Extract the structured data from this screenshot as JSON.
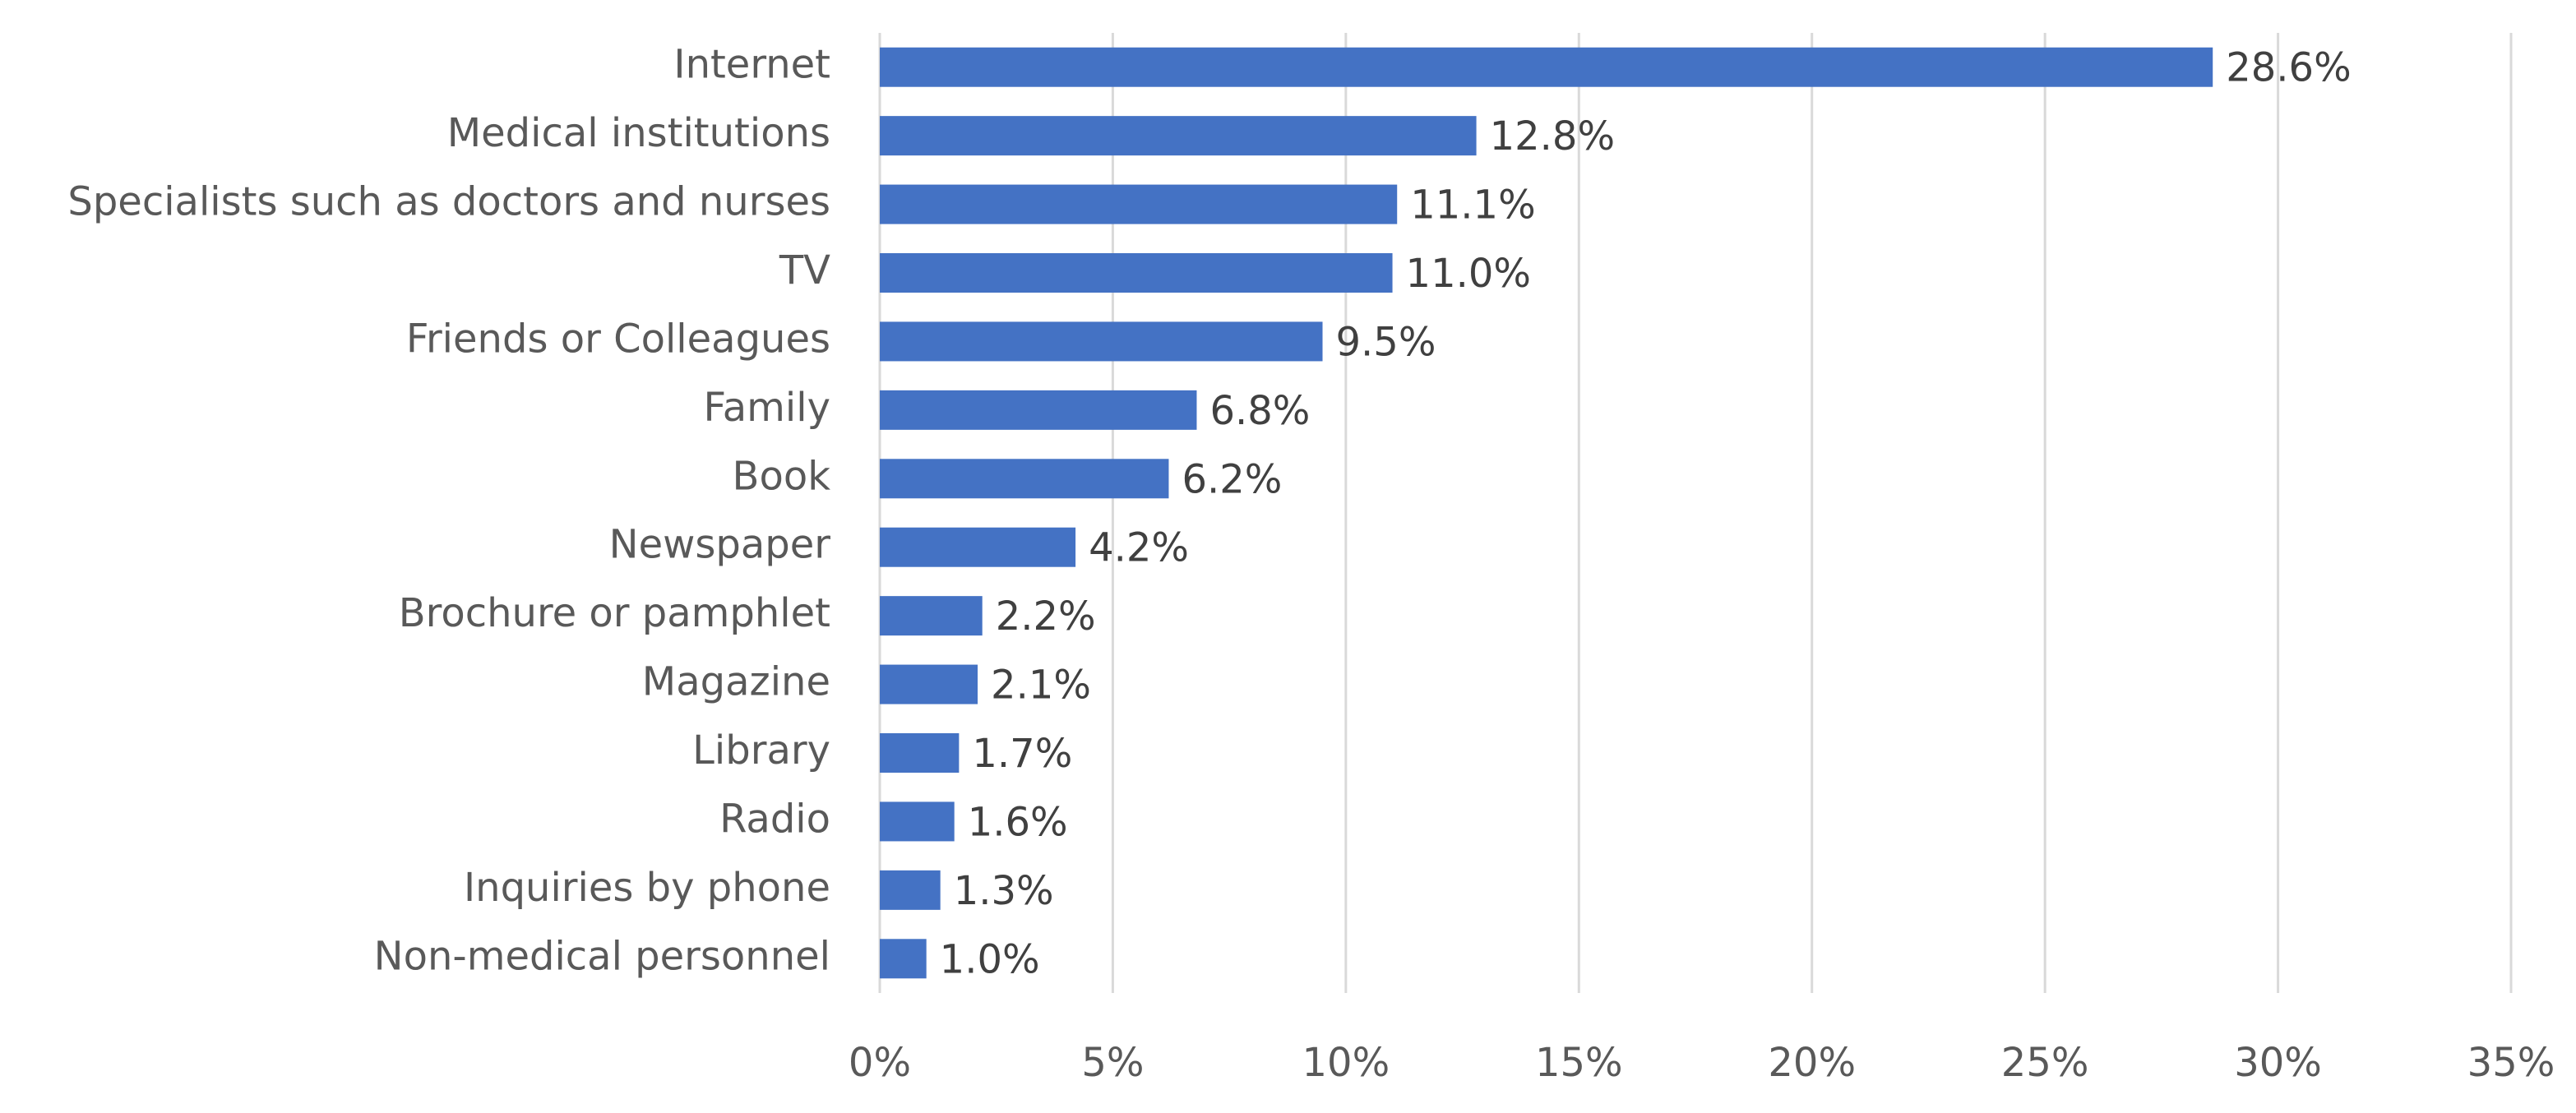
{
  "chart_data": {
    "type": "hbar",
    "categories": [
      "Internet",
      "Medical institutions",
      "Specialists such as doctors and nurses",
      "TV",
      "Friends or Colleagues",
      "Family",
      "Book",
      "Newspaper",
      "Brochure or pamphlet",
      "Magazine",
      "Library",
      "Radio",
      "Inquiries by phone",
      "Non-medical personnel"
    ],
    "values": [
      28.6,
      12.8,
      11.1,
      11.0,
      9.5,
      6.8,
      6.2,
      4.2,
      2.2,
      2.1,
      1.7,
      1.6,
      1.3,
      1.0
    ],
    "value_labels": [
      "28.6%",
      "12.8%",
      "11.1%",
      "11.0%",
      "9.5%",
      "6.8%",
      "6.2%",
      "4.2%",
      "2.2%",
      "2.1%",
      "1.7%",
      "1.6%",
      "1.3%",
      "1.0%"
    ],
    "color": "#4472c4",
    "xlim": [
      0,
      35
    ],
    "xticks": [
      {
        "value": 0,
        "label": "0%"
      },
      {
        "value": 5,
        "label": "5%"
      },
      {
        "value": 10,
        "label": "10%"
      },
      {
        "value": 15,
        "label": "15%"
      },
      {
        "value": 20,
        "label": "20%"
      },
      {
        "value": 25,
        "label": "25%"
      },
      {
        "value": 30,
        "label": "30%"
      },
      {
        "value": 35,
        "label": "35%"
      }
    ],
    "grid": true
  }
}
